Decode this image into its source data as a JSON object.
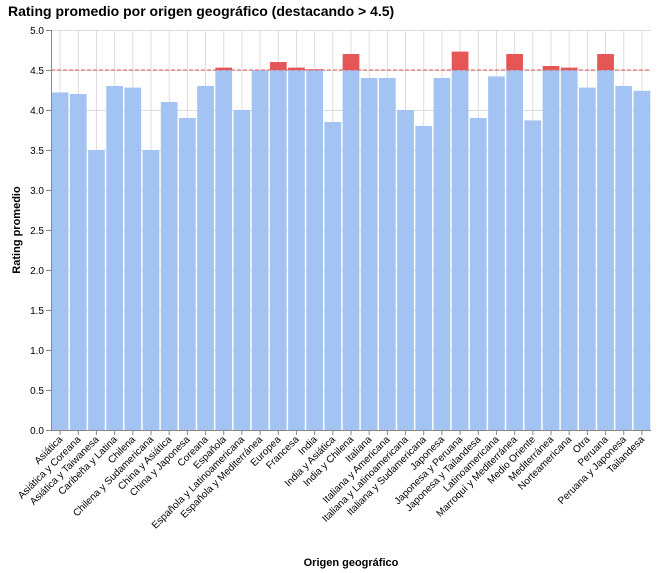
{
  "chart_data": {
    "type": "bar",
    "title": "Rating promedio por origen geográfico (destacando > 4.5)",
    "xlabel": "Origen geográfico",
    "ylabel": "Rating promedio",
    "ylim": [
      0,
      5
    ],
    "yticks": [
      "0.0",
      "0.5",
      "1.0",
      "1.5",
      "2.0",
      "2.5",
      "3.0",
      "3.5",
      "4.0",
      "4.5",
      "5.0"
    ],
    "threshold": 4.5,
    "colors": {
      "base": "#a3c4f3",
      "highlight": "#e45756",
      "threshold_line": "#e45756"
    },
    "grid": true,
    "categories": [
      "Asiática",
      "Asiática y Coreana",
      "Asiática y Taiwanesa",
      "Caribeña y Latina",
      "Chilena",
      "Chilena y Sudamericana",
      "China y Asiática",
      "China y Japonesa",
      "Coreana",
      "Española",
      "Española y Latinoamericana",
      "Española y Mediterránea",
      "Europea",
      "Francesa",
      "India",
      "India y Asiática",
      "India y Chilena",
      "Italiana",
      "Italiana y Americana",
      "Italiana y Latinoamericana",
      "Italiana y Sudamericana",
      "Japonesa",
      "Japonesa y Peruana",
      "Japonesa y Tailandesa",
      "Latinoamericana",
      "Marroquí y Mediterránea",
      "Medio Oriente",
      "Mediterránea",
      "Norteamericana",
      "Otra",
      "Peruana",
      "Peruana y Japonesa",
      "Tailandesa"
    ],
    "values": [
      4.22,
      4.2,
      3.5,
      4.3,
      4.28,
      3.5,
      4.1,
      3.9,
      4.3,
      4.53,
      4.0,
      4.5,
      4.6,
      4.53,
      4.51,
      3.85,
      4.7,
      4.4,
      4.4,
      4.0,
      3.8,
      4.4,
      4.73,
      3.9,
      4.42,
      4.7,
      3.87,
      4.55,
      4.53,
      4.28,
      4.7,
      4.3,
      4.24
    ]
  }
}
